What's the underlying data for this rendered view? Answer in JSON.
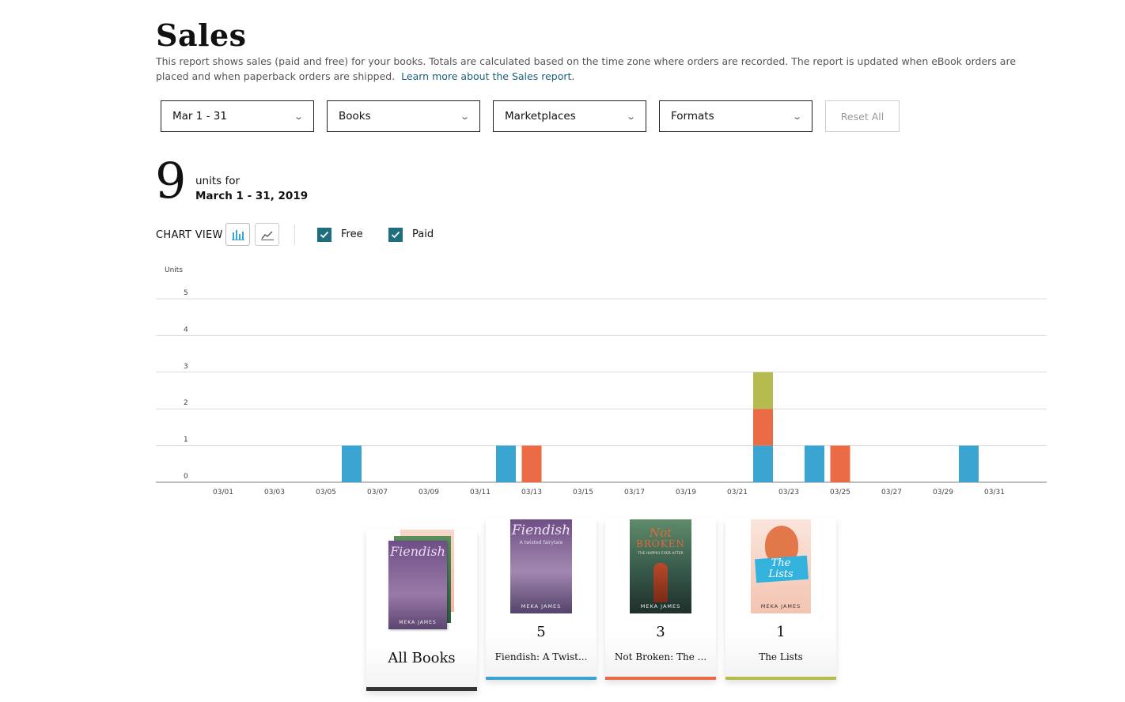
{
  "header": {
    "title": "Sales",
    "description": "This report shows sales (paid and free) for your books. Totals are calculated based on the time zone where orders are recorded. The report is updated when eBook orders are placed and when paperback orders are shipped.",
    "learn_more": "Learn more about the Sales report."
  },
  "filters": {
    "date": "Mar 1 - 31",
    "books": "Books",
    "marketplaces": "Marketplaces",
    "formats": "Formats",
    "reset": "Reset All"
  },
  "summary": {
    "units": "9",
    "units_for": "units for",
    "date_range": "March 1 - 31, 2019"
  },
  "chart_view": {
    "label": "CHART VIEW",
    "free_label": "Free",
    "paid_label": "Paid",
    "free_checked": true,
    "paid_checked": true
  },
  "colors": {
    "fiendish": "#3aa5d0",
    "not_broken": "#ec6b47",
    "the_lists": "#b5bb4f",
    "all_books": "#333333",
    "checkbox": "#1f6e7e",
    "link": "#1a5f7a"
  },
  "chart_data": {
    "type": "bar",
    "stacked": true,
    "ylabel": "Units",
    "ylim": [
      0,
      5
    ],
    "yticks": [
      0,
      1,
      2,
      3,
      4,
      5
    ],
    "grid": true,
    "x": [
      "03/01",
      "03/02",
      "03/03",
      "03/04",
      "03/05",
      "03/06",
      "03/07",
      "03/08",
      "03/09",
      "03/10",
      "03/11",
      "03/12",
      "03/13",
      "03/14",
      "03/15",
      "03/16",
      "03/17",
      "03/18",
      "03/19",
      "03/20",
      "03/21",
      "03/22",
      "03/23",
      "03/24",
      "03/25",
      "03/26",
      "03/27",
      "03/28",
      "03/29",
      "03/30",
      "03/31"
    ],
    "xtick_labels": [
      "03/01",
      "03/03",
      "03/05",
      "03/07",
      "03/09",
      "03/11",
      "03/13",
      "03/15",
      "03/17",
      "03/19",
      "03/21",
      "03/23",
      "03/25",
      "03/27",
      "03/29",
      "03/31"
    ],
    "series": [
      {
        "color": "#3aa5d0",
        "values": [
          0,
          0,
          0,
          0,
          0,
          1,
          0,
          0,
          0,
          0,
          0,
          1,
          0,
          0,
          0,
          0,
          0,
          0,
          0,
          0,
          0,
          1,
          0,
          1,
          0,
          0,
          0,
          0,
          0,
          1,
          0
        ]
      },
      {
        "color": "#ec6b47",
        "values": [
          0,
          0,
          0,
          0,
          0,
          0,
          0,
          0,
          0,
          0,
          0,
          0,
          1,
          0,
          0,
          0,
          0,
          0,
          0,
          0,
          0,
          1,
          0,
          0,
          1,
          0,
          0,
          0,
          0,
          0,
          0
        ]
      },
      {
        "color": "#b5bb4f",
        "values": [
          0,
          0,
          0,
          0,
          0,
          0,
          0,
          0,
          0,
          0,
          0,
          0,
          0,
          0,
          0,
          0,
          0,
          0,
          0,
          0,
          0,
          1,
          0,
          0,
          0,
          0,
          0,
          0,
          0,
          0,
          0
        ]
      }
    ]
  },
  "books": [
    {
      "title": "All Books",
      "count": "",
      "color": "#333333",
      "cover": "stack"
    },
    {
      "title": "Fiendish: A Twist...",
      "count": "5",
      "color": "#3aa5d0",
      "cover": "fiendish",
      "cover_title": "Fiendish",
      "cover_sub": "A twisted fairytale",
      "cover_author": "MEKA JAMES"
    },
    {
      "title": "Not Broken: The ...",
      "count": "3",
      "color": "#ec6b47",
      "cover": "notbroken",
      "cover_title": "Not",
      "cover_title2": "BROKEN",
      "cover_sub": "THE HAPPILY EVER AFTER",
      "cover_author": "MEKA JAMES"
    },
    {
      "title": "The Lists",
      "count": "1",
      "color": "#b5bb4f",
      "cover": "lists",
      "cover_title": "The",
      "cover_title2": "Lists",
      "cover_author": "MEKA JAMES"
    }
  ]
}
